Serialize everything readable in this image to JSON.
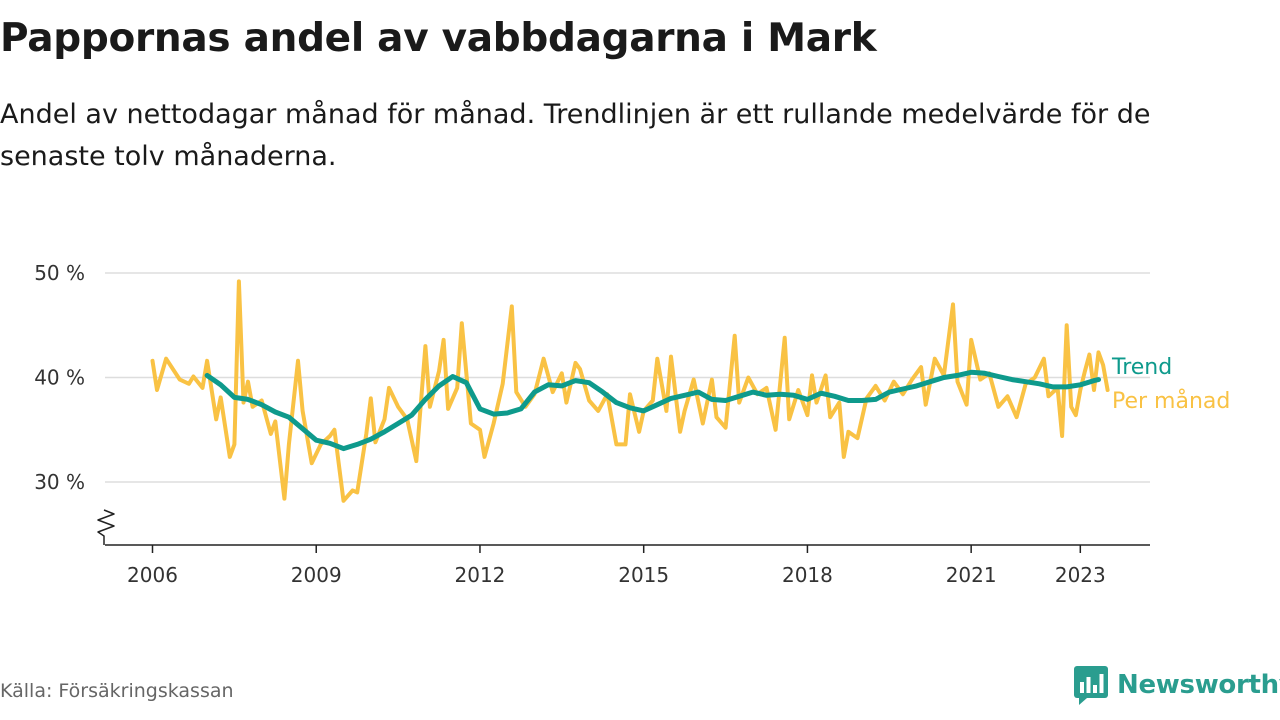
{
  "header": {
    "title": "Pappornas andel av vabbdagarna i Mark",
    "subtitle": "Andel av nettodagar månad för månad. Trendlinjen är ett rullande medelvärde för de senaste tolv månaderna."
  },
  "footer": {
    "source": "Källa: Försäkringskassan",
    "brand": "Newsworthy"
  },
  "colors": {
    "trend": "#0e9a8c",
    "monthly": "#f9c244",
    "grid": "#dddddd",
    "axis": "#222222",
    "brand": "#2a9d8f"
  },
  "chart_data": {
    "type": "line",
    "title": "Pappornas andel av vabbdagarna i Mark",
    "xlabel": "",
    "ylabel": "",
    "xlim": [
      "2006-01",
      "2023-06"
    ],
    "ylim": [
      24,
      52
    ],
    "y_ticks": [
      30,
      40,
      50
    ],
    "y_tick_labels": [
      "30 %",
      "40 %",
      "50 %"
    ],
    "x_ticks": [
      "2006",
      "2009",
      "2012",
      "2015",
      "2018",
      "2021",
      "2023"
    ],
    "grid": true,
    "axis_break": true,
    "legend_placement": "right, inline at line ends",
    "series": [
      {
        "name": "Trend",
        "color": "#0e9a8c",
        "points": [
          [
            "2007-01",
            40.2
          ],
          [
            "2007-04",
            39.3
          ],
          [
            "2007-07",
            38.1
          ],
          [
            "2007-10",
            37.9
          ],
          [
            "2008-01",
            37.4
          ],
          [
            "2008-04",
            36.7
          ],
          [
            "2008-07",
            36.2
          ],
          [
            "2008-10",
            35.1
          ],
          [
            "2009-01",
            34.0
          ],
          [
            "2009-04",
            33.7
          ],
          [
            "2009-07",
            33.2
          ],
          [
            "2009-10",
            33.6
          ],
          [
            "2010-01",
            34.1
          ],
          [
            "2010-04",
            34.8
          ],
          [
            "2010-07",
            35.6
          ],
          [
            "2010-10",
            36.4
          ],
          [
            "2011-01",
            37.9
          ],
          [
            "2011-04",
            39.2
          ],
          [
            "2011-07",
            40.1
          ],
          [
            "2011-10",
            39.5
          ],
          [
            "2012-01",
            37.0
          ],
          [
            "2012-04",
            36.5
          ],
          [
            "2012-07",
            36.6
          ],
          [
            "2012-10",
            37.0
          ],
          [
            "2013-01",
            38.6
          ],
          [
            "2013-04",
            39.3
          ],
          [
            "2013-07",
            39.2
          ],
          [
            "2013-10",
            39.7
          ],
          [
            "2014-01",
            39.5
          ],
          [
            "2014-04",
            38.6
          ],
          [
            "2014-07",
            37.6
          ],
          [
            "2014-10",
            37.1
          ],
          [
            "2015-01",
            36.8
          ],
          [
            "2015-04",
            37.4
          ],
          [
            "2015-07",
            38.0
          ],
          [
            "2015-10",
            38.3
          ],
          [
            "2016-01",
            38.6
          ],
          [
            "2016-04",
            37.9
          ],
          [
            "2016-07",
            37.8
          ],
          [
            "2016-10",
            38.2
          ],
          [
            "2017-01",
            38.6
          ],
          [
            "2017-04",
            38.3
          ],
          [
            "2017-07",
            38.4
          ],
          [
            "2017-10",
            38.3
          ],
          [
            "2018-01",
            37.9
          ],
          [
            "2018-04",
            38.5
          ],
          [
            "2018-07",
            38.2
          ],
          [
            "2018-10",
            37.8
          ],
          [
            "2019-01",
            37.8
          ],
          [
            "2019-04",
            37.9
          ],
          [
            "2019-07",
            38.6
          ],
          [
            "2019-10",
            38.9
          ],
          [
            "2020-01",
            39.2
          ],
          [
            "2020-04",
            39.6
          ],
          [
            "2020-07",
            40.0
          ],
          [
            "2020-10",
            40.2
          ],
          [
            "2021-01",
            40.5
          ],
          [
            "2021-04",
            40.4
          ],
          [
            "2021-07",
            40.1
          ],
          [
            "2021-10",
            39.8
          ],
          [
            "2022-01",
            39.6
          ],
          [
            "2022-04",
            39.4
          ],
          [
            "2022-07",
            39.1
          ],
          [
            "2022-10",
            39.1
          ],
          [
            "2023-01",
            39.3
          ],
          [
            "2023-04",
            39.7
          ],
          [
            "2023-05",
            39.8
          ]
        ]
      },
      {
        "name": "Per månad",
        "color": "#f9c244",
        "points": [
          [
            "2006-01",
            41.6
          ],
          [
            "2006-02",
            38.8
          ],
          [
            "2006-04",
            41.8
          ],
          [
            "2006-07",
            39.8
          ],
          [
            "2006-09",
            39.4
          ],
          [
            "2006-10",
            40.1
          ],
          [
            "2006-12",
            39.0
          ],
          [
            "2007-01",
            41.6
          ],
          [
            "2007-03",
            36.0
          ],
          [
            "2007-04",
            38.1
          ],
          [
            "2007-06",
            32.4
          ],
          [
            "2007-07",
            33.6
          ],
          [
            "2007-08",
            49.2
          ],
          [
            "2007-09",
            37.6
          ],
          [
            "2007-10",
            39.6
          ],
          [
            "2007-11",
            37.2
          ],
          [
            "2008-01",
            37.8
          ],
          [
            "2008-03",
            34.6
          ],
          [
            "2008-04",
            35.8
          ],
          [
            "2008-06",
            28.4
          ],
          [
            "2008-07",
            33.6
          ],
          [
            "2008-09",
            41.6
          ],
          [
            "2008-10",
            36.8
          ],
          [
            "2008-12",
            31.8
          ],
          [
            "2009-02",
            33.6
          ],
          [
            "2009-04",
            34.4
          ],
          [
            "2009-05",
            35.0
          ],
          [
            "2009-07",
            28.2
          ],
          [
            "2009-09",
            29.2
          ],
          [
            "2009-10",
            29.0
          ],
          [
            "2009-12",
            34.6
          ],
          [
            "2010-01",
            38.0
          ],
          [
            "2010-02",
            33.8
          ],
          [
            "2010-04",
            36.0
          ],
          [
            "2010-05",
            39.0
          ],
          [
            "2010-07",
            37.2
          ],
          [
            "2010-09",
            36.0
          ],
          [
            "2010-11",
            32.0
          ],
          [
            "2011-01",
            43.0
          ],
          [
            "2011-02",
            37.2
          ],
          [
            "2011-04",
            40.6
          ],
          [
            "2011-05",
            43.6
          ],
          [
            "2011-06",
            37.0
          ],
          [
            "2011-08",
            39.0
          ],
          [
            "2011-09",
            45.2
          ],
          [
            "2011-11",
            35.6
          ],
          [
            "2012-01",
            35.0
          ],
          [
            "2012-02",
            32.4
          ],
          [
            "2012-04",
            35.6
          ],
          [
            "2012-06",
            39.4
          ],
          [
            "2012-08",
            46.8
          ],
          [
            "2012-09",
            38.6
          ],
          [
            "2012-11",
            37.2
          ],
          [
            "2013-01",
            38.4
          ],
          [
            "2013-03",
            41.8
          ],
          [
            "2013-05",
            38.6
          ],
          [
            "2013-07",
            40.4
          ],
          [
            "2013-08",
            37.6
          ],
          [
            "2013-10",
            41.4
          ],
          [
            "2013-11",
            40.8
          ],
          [
            "2014-01",
            37.8
          ],
          [
            "2014-03",
            36.8
          ],
          [
            "2014-05",
            38.4
          ],
          [
            "2014-07",
            33.6
          ],
          [
            "2014-09",
            33.6
          ],
          [
            "2014-10",
            38.4
          ],
          [
            "2014-12",
            34.8
          ],
          [
            "2015-01",
            36.8
          ],
          [
            "2015-03",
            37.8
          ],
          [
            "2015-04",
            41.8
          ],
          [
            "2015-06",
            36.8
          ],
          [
            "2015-07",
            42.0
          ],
          [
            "2015-09",
            34.8
          ],
          [
            "2015-10",
            36.8
          ],
          [
            "2015-12",
            39.8
          ],
          [
            "2016-02",
            35.6
          ],
          [
            "2016-04",
            39.8
          ],
          [
            "2016-05",
            36.2
          ],
          [
            "2016-07",
            35.2
          ],
          [
            "2016-09",
            44.0
          ],
          [
            "2016-10",
            37.6
          ],
          [
            "2016-12",
            40.0
          ],
          [
            "2017-02",
            38.4
          ],
          [
            "2017-04",
            39.0
          ],
          [
            "2017-06",
            35.0
          ],
          [
            "2017-08",
            43.8
          ],
          [
            "2017-09",
            36.0
          ],
          [
            "2017-11",
            38.8
          ],
          [
            "2018-01",
            36.4
          ],
          [
            "2018-02",
            40.2
          ],
          [
            "2018-03",
            37.6
          ],
          [
            "2018-05",
            40.2
          ],
          [
            "2018-06",
            36.2
          ],
          [
            "2018-08",
            37.6
          ],
          [
            "2018-09",
            32.4
          ],
          [
            "2018-10",
            34.8
          ],
          [
            "2018-12",
            34.2
          ],
          [
            "2019-02",
            38.0
          ],
          [
            "2019-04",
            39.2
          ],
          [
            "2019-06",
            37.8
          ],
          [
            "2019-08",
            39.6
          ],
          [
            "2019-10",
            38.4
          ],
          [
            "2019-12",
            39.8
          ],
          [
            "2020-02",
            41.0
          ],
          [
            "2020-03",
            37.4
          ],
          [
            "2020-05",
            41.8
          ],
          [
            "2020-07",
            40.2
          ],
          [
            "2020-09",
            47.0
          ],
          [
            "2020-10",
            39.6
          ],
          [
            "2020-12",
            37.4
          ],
          [
            "2021-01",
            43.6
          ],
          [
            "2021-03",
            39.8
          ],
          [
            "2021-05",
            40.4
          ],
          [
            "2021-07",
            37.2
          ],
          [
            "2021-09",
            38.2
          ],
          [
            "2021-11",
            36.2
          ],
          [
            "2022-01",
            39.4
          ],
          [
            "2022-03",
            40.0
          ],
          [
            "2022-05",
            41.8
          ],
          [
            "2022-06",
            38.2
          ],
          [
            "2022-08",
            39.0
          ],
          [
            "2022-09",
            34.4
          ],
          [
            "2022-10",
            45.0
          ],
          [
            "2022-11",
            37.2
          ],
          [
            "2022-12",
            36.4
          ],
          [
            "2023-01",
            38.8
          ],
          [
            "2023-02",
            40.6
          ],
          [
            "2023-03",
            42.2
          ],
          [
            "2023-04",
            38.8
          ],
          [
            "2023-05",
            42.4
          ],
          [
            "2023-06",
            41.2
          ],
          [
            "2023-07",
            38.8
          ]
        ]
      }
    ]
  }
}
